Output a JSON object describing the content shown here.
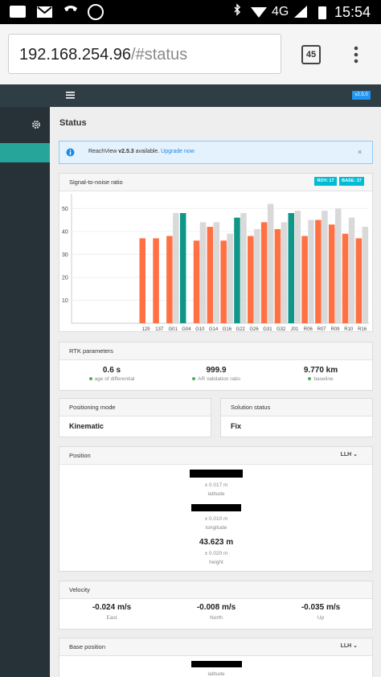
{
  "status_bar": {
    "network": "4G",
    "time": "15:54"
  },
  "browser": {
    "url_host": "192.168.254.96",
    "url_path": "/#status",
    "tabs": "45"
  },
  "app_header": {
    "version": "v2.5.0"
  },
  "page": {
    "title": "Status"
  },
  "alert": {
    "prefix": "ReachView ",
    "version": "v2.5.3",
    "text": " available. ",
    "link": "Upgrade now"
  },
  "chart_data": {
    "type": "bar",
    "title": "Signal-to-noise ratio",
    "categories": [
      null,
      null,
      null,
      null,
      null,
      "129",
      "137",
      "G01",
      "G04",
      "G10",
      "G14",
      "G16",
      "G22",
      "G26",
      "G31",
      "G32",
      "J01",
      "R06",
      "R07",
      "R09",
      "R10",
      "R16"
    ],
    "series": [
      {
        "name": "ROV: 17",
        "color": "#ff7043",
        "colors": [
          null,
          null,
          null,
          null,
          null,
          "#ff7043",
          "#ff7043",
          "#ff7043",
          "#0f9688",
          "#ff7043",
          "#ff7043",
          "#ff7043",
          "#0f9688",
          "#ff7043",
          "#ff7043",
          "#ff7043",
          "#0f9688",
          "#ff7043",
          "#ff7043",
          "#ff7043",
          "#ff7043",
          "#ff7043"
        ],
        "values": [
          null,
          null,
          null,
          null,
          null,
          37,
          37,
          38,
          48,
          36,
          42,
          36,
          46,
          38,
          44,
          41,
          48,
          38,
          45,
          43,
          39,
          37
        ]
      },
      {
        "name": "BASE: 37",
        "color": "#d9d9d9",
        "values": [
          null,
          null,
          null,
          null,
          null,
          null,
          null,
          48,
          null,
          44,
          44,
          39,
          48,
          41,
          52,
          44,
          49,
          45,
          49,
          50,
          46,
          42
        ]
      }
    ],
    "ylim": [
      0,
      55
    ],
    "yticks": [
      10,
      20,
      30,
      40,
      50
    ],
    "grid": true
  },
  "rtk": {
    "title": "RTK parameters",
    "items": [
      {
        "value": "0.6 s",
        "label": "age of differential"
      },
      {
        "value": "999.9",
        "label": "AR validation ratio"
      },
      {
        "value": "9.770 km",
        "label": "baseline"
      }
    ]
  },
  "positioning_mode": {
    "title": "Positioning mode",
    "value": "Kinematic"
  },
  "solution_status": {
    "title": "Solution status",
    "value": "Fix"
  },
  "position": {
    "title": "Position",
    "format": "LLH",
    "items": [
      {
        "error": "± 0.017 m",
        "label": "latitude"
      },
      {
        "error": "± 0.010 m",
        "label": "longitude"
      },
      {
        "value": "43.623 m",
        "error": "± 0.020 m",
        "label": "height"
      }
    ]
  },
  "velocity": {
    "title": "Velocity",
    "items": [
      {
        "value": "-0.024 m/s",
        "label": "East"
      },
      {
        "value": "-0.008 m/s",
        "label": "North"
      },
      {
        "value": "-0.035 m/s",
        "label": "Up"
      }
    ]
  },
  "base_position": {
    "title": "Base position",
    "format": "LLH",
    "items": [
      {
        "label": "latitude"
      }
    ]
  }
}
